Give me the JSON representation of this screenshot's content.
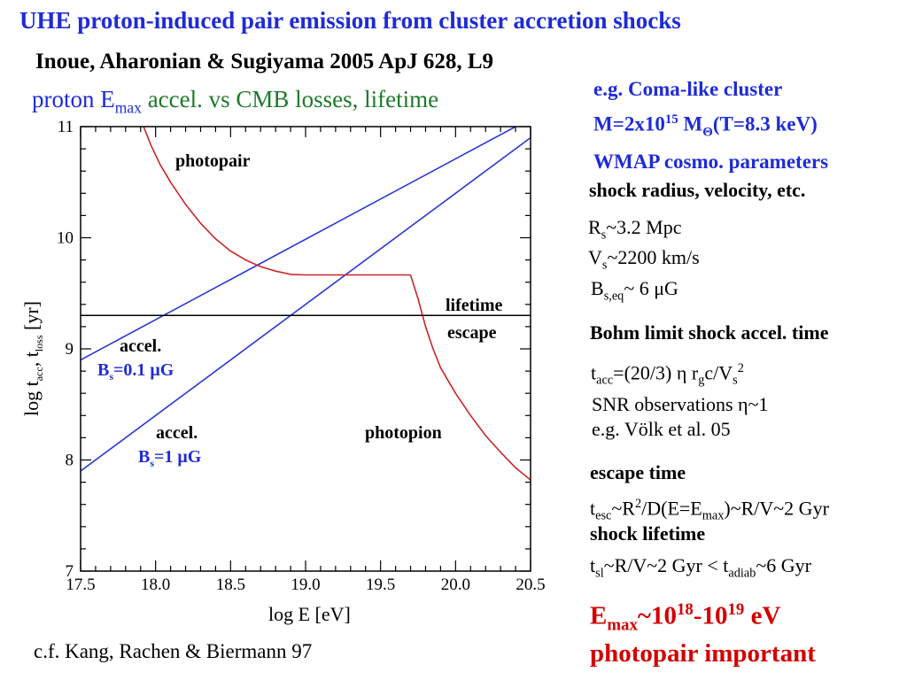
{
  "slide": {
    "title": "UHE proton-induced pair emission from cluster accretion shocks",
    "reference": "Inoue, Aharonian & Sugiyama 2005 ApJ 628, L9",
    "subtitle": {
      "part1": "proton E",
      "part1_sub": "max",
      "part2": "accel. vs CMB losses, lifetime"
    },
    "credit": "c.f. Kang, Rachen & Biermann 97"
  },
  "side": {
    "cluster": {
      "line1": "e.g. Coma-like cluster",
      "line2_a": "M=2x10",
      "line2_sup": "15",
      "line2_b": " M",
      "line2_sub": "Θ",
      "line2_c": "(T=8.3 keV)",
      "line3": "WMAP cosmo. parameters"
    },
    "shock_heading": "shock radius, velocity, etc.",
    "rs": {
      "a": "R",
      "sub": "s",
      "b": "~3.2 Mpc"
    },
    "vs": {
      "a": "V",
      "sub": "s",
      "b": "~2200 km/s"
    },
    "bs": {
      "a": "B",
      "sub": "s,eq",
      "b": "~ 6 μG"
    },
    "bohm_heading": "Bohm limit shock accel. time",
    "tacc": {
      "a": "t",
      "sub1": "acc",
      "b": "=(20/3) η r",
      "sub2": "g",
      "c": "c/V",
      "sub3": "s",
      "sup": "2"
    },
    "snr1": "SNR observations η~1",
    "snr2": "e.g. Völk et al. 05",
    "escape_heading": "escape time",
    "tesc": {
      "a": "t",
      "sub1": "esc",
      "b": "~R",
      "sup": "2",
      "c": "/D(E=E",
      "sub2": "max",
      "d": ")~R/V~2 Gyr"
    },
    "lifetime_heading": "shock lifetime",
    "tsl": {
      "a": "t",
      "sub1": "sl",
      "b": "~R/V~2 Gyr < t",
      "sub2": "adiab",
      "c": "~6 Gyr"
    },
    "conclusion": {
      "a": "E",
      "sub": "max",
      "b": "~10",
      "sup1": "18",
      "c": "-10",
      "sup2": "19",
      "d": " eV",
      "line2": "photopair important"
    }
  },
  "chart_data": {
    "type": "line",
    "xlabel": "log E [eV]",
    "ylabel": {
      "a": "log t",
      "sub1": "acc",
      "b": ", t",
      "sub2": "loss",
      "c": " [yr]"
    },
    "xlim": [
      17.5,
      20.5
    ],
    "ylim": [
      7,
      11
    ],
    "xticks": [
      "17.5",
      "18.0",
      "18.5",
      "19.0",
      "19.5",
      "20.0",
      "20.5"
    ],
    "yticks": [
      "7",
      "8",
      "9",
      "10",
      "11"
    ],
    "colors": {
      "accel": "#2a36d6",
      "loss": "#c8262a",
      "lifetime": "#000000"
    },
    "series": [
      {
        "key": "accel_01",
        "x": [
          17.5,
          20.4
        ],
        "y": [
          8.9,
          11.0
        ]
      },
      {
        "key": "accel_1",
        "x": [
          17.5,
          20.5
        ],
        "y": [
          7.9,
          10.9
        ]
      },
      {
        "key": "photopair",
        "x": [
          17.92,
          17.97,
          18.03,
          18.1,
          18.2,
          18.3,
          18.4,
          18.5,
          18.6,
          18.7,
          18.8,
          18.9,
          19.0,
          19.1,
          19.2,
          19.3,
          19.4,
          19.5,
          19.6,
          19.7
        ],
        "y": [
          11.0,
          10.83,
          10.66,
          10.5,
          10.3,
          10.13,
          9.99,
          9.88,
          9.8,
          9.74,
          9.7,
          9.67,
          9.665,
          9.665,
          9.665,
          9.665,
          9.665,
          9.665,
          9.665,
          9.665
        ]
      },
      {
        "key": "photopion",
        "x": [
          19.7,
          19.75,
          19.8,
          19.85,
          19.9,
          20.0,
          20.1,
          20.2,
          20.3,
          20.4,
          20.5
        ],
        "y": [
          9.665,
          9.45,
          9.2,
          9.0,
          8.83,
          8.6,
          8.4,
          8.22,
          8.07,
          7.93,
          7.82
        ]
      },
      {
        "key": "lifetime",
        "x": [
          17.5,
          20.5
        ],
        "y": [
          9.3,
          9.3
        ]
      }
    ],
    "annotations": {
      "photopair": "photopair",
      "lifetime": "lifetime",
      "escape": "escape",
      "accel_upper": "accel.",
      "b_upper": {
        "a": "B",
        "sub": "s",
        "b": "=0.1 μG"
      },
      "accel_lower": "accel.",
      "b_lower": {
        "a": "B",
        "sub": "s",
        "b": "=1 μG"
      },
      "photopion": "photopion"
    }
  }
}
